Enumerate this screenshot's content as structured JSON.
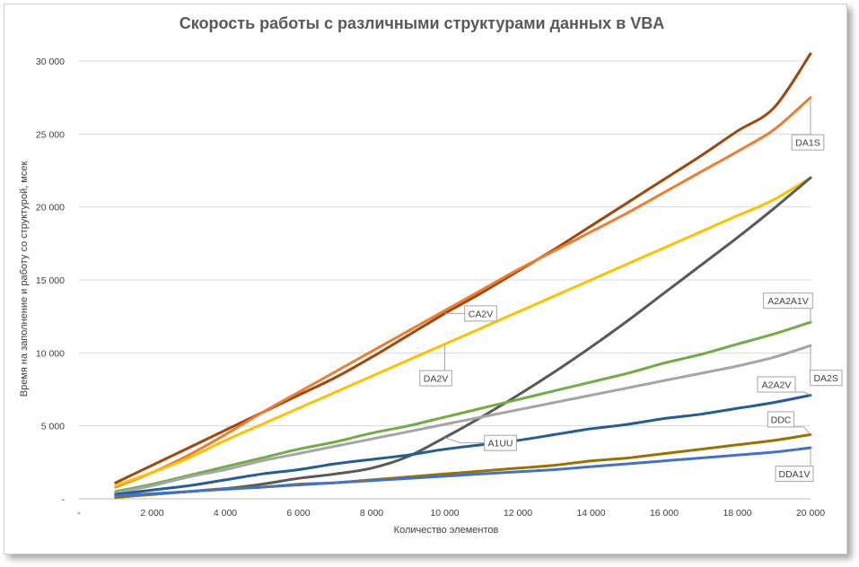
{
  "chart_data": {
    "type": "line",
    "title": "Скорость работы с различными структурами данных в VBA",
    "xlabel": "Количество элементов",
    "ylabel": "Время на заполнение и работу со структурой, мсек",
    "xlim": [
      0,
      20000
    ],
    "ylim": [
      0,
      30000
    ],
    "x_ticks": [
      0,
      2000,
      4000,
      6000,
      8000,
      10000,
      12000,
      14000,
      16000,
      18000,
      20000
    ],
    "x_tick_labels": [
      "-",
      "2 000",
      "4 000",
      "6 000",
      "8 000",
      "10 000",
      "12 000",
      "14 000",
      "16 000",
      "18 000",
      "20 000"
    ],
    "y_ticks": [
      0,
      5000,
      10000,
      15000,
      20000,
      25000,
      30000
    ],
    "y_tick_labels": [
      "-",
      "5 000",
      "10 000",
      "15 000",
      "20 000",
      "25 000",
      "30 000"
    ],
    "grid": true,
    "x": [
      1000,
      2000,
      3000,
      4000,
      5000,
      6000,
      7000,
      8000,
      9000,
      10000,
      11000,
      12000,
      13000,
      14000,
      15000,
      16000,
      17000,
      18000,
      19000,
      20000
    ],
    "series": [
      {
        "name": "CA2V",
        "color": "#9e480e",
        "values": [
          1100,
          2300,
          3500,
          4700,
          5900,
          7100,
          8300,
          9700,
          11200,
          12700,
          14100,
          15600,
          17100,
          18700,
          20300,
          21900,
          23500,
          25200,
          26800,
          30500
        ]
      },
      {
        "name": "DA1S",
        "color": "#ed7d31",
        "values": [
          800,
          1800,
          3000,
          4400,
          5900,
          7300,
          8700,
          10100,
          11500,
          12900,
          14300,
          15700,
          17000,
          18300,
          19600,
          21000,
          22400,
          23800,
          25300,
          27500
        ]
      },
      {
        "name": "DA2V",
        "color": "#ffc000",
        "values": [
          900,
          1800,
          2800,
          4000,
          5100,
          6200,
          7300,
          8400,
          9500,
          10600,
          11700,
          12800,
          13900,
          15000,
          16100,
          17200,
          18300,
          19400,
          20500,
          22000
        ]
      },
      {
        "name": "A1UU",
        "color": "#595959",
        "values": [
          100,
          300,
          500,
          700,
          1000,
          1400,
          1700,
          2100,
          2900,
          4200,
          5600,
          7100,
          8700,
          10400,
          12200,
          14100,
          16000,
          17900,
          19900,
          22000
        ]
      },
      {
        "name": "A2A2A1V",
        "color": "#70ad47",
        "values": [
          500,
          1000,
          1600,
          2200,
          2800,
          3400,
          3900,
          4500,
          5000,
          5600,
          6200,
          6800,
          7400,
          8000,
          8600,
          9300,
          9900,
          10600,
          11300,
          12100
        ]
      },
      {
        "name": "DA2S",
        "color": "#a5a5a5",
        "values": [
          400,
          900,
          1500,
          2000,
          2600,
          3100,
          3600,
          4100,
          4600,
          5100,
          5600,
          6100,
          6600,
          7100,
          7600,
          8100,
          8600,
          9100,
          9700,
          10500
        ]
      },
      {
        "name": "A2A2V",
        "color": "#255e91",
        "values": [
          300,
          600,
          900,
          1300,
          1700,
          2000,
          2400,
          2700,
          3000,
          3400,
          3700,
          4000,
          4400,
          4800,
          5100,
          5500,
          5800,
          6200,
          6600,
          7100
        ]
      },
      {
        "name": "DDC",
        "color": "#997300",
        "values": [
          100,
          300,
          500,
          700,
          800,
          1000,
          1100,
          1300,
          1500,
          1700,
          1900,
          2100,
          2300,
          2600,
          2800,
          3100,
          3400,
          3700,
          4000,
          4400
        ]
      },
      {
        "name": "DDA1V",
        "color": "#4472c4",
        "values": [
          200,
          350,
          500,
          650,
          800,
          950,
          1100,
          1250,
          1400,
          1550,
          1700,
          1850,
          2000,
          2200,
          2400,
          2600,
          2800,
          3000,
          3200,
          3500
        ]
      }
    ],
    "callouts": [
      {
        "label": "CA2V",
        "series": "CA2V",
        "at_x": 10000
      },
      {
        "label": "DA1S",
        "series": "DA1S",
        "at_x": 20000
      },
      {
        "label": "DA2V",
        "series": "DA2V",
        "at_x": 10000
      },
      {
        "label": "A1UU",
        "series": "A1UU",
        "at_x": 10000
      },
      {
        "label": "A2A2A1V",
        "series": "A2A2A1V",
        "at_x": 20000
      },
      {
        "label": "DA2S",
        "series": "DA2S",
        "at_x": 20000
      },
      {
        "label": "A2A2V",
        "series": "A2A2V",
        "at_x": 20000
      },
      {
        "label": "DDC",
        "series": "DDC",
        "at_x": 20000
      },
      {
        "label": "DDA1V",
        "series": "DDA1V",
        "at_x": 20000
      }
    ]
  }
}
